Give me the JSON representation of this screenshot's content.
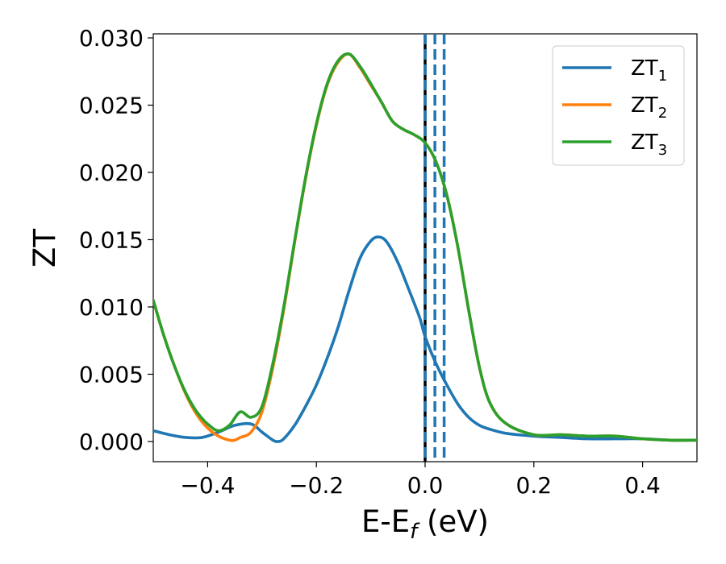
{
  "chart_data": {
    "type": "line",
    "xlabel": {
      "main": "E-E",
      "sub": "f",
      "units": " (eV)"
    },
    "ylabel": "ZT",
    "xlim": [
      -0.5,
      0.5
    ],
    "ylim": [
      -0.0015,
      0.0303
    ],
    "xticks": [
      -0.4,
      -0.2,
      0.0,
      0.2,
      0.4
    ],
    "xtick_labels": [
      "−0.4",
      "−0.2",
      "0.0",
      "0.2",
      "0.4"
    ],
    "yticks": [
      0.0,
      0.005,
      0.01,
      0.015,
      0.02,
      0.025,
      0.03
    ],
    "ytick_labels": [
      "0.000",
      "0.005",
      "0.010",
      "0.015",
      "0.020",
      "0.025",
      "0.030"
    ],
    "grid": false,
    "legend_position": "top-right",
    "vlines": [
      {
        "x": 0.0,
        "style": "solid",
        "color": "#000000"
      },
      {
        "x": 0.0,
        "style": "dashed",
        "color": "#1f77b4"
      },
      {
        "x": 0.018,
        "style": "dashed",
        "color": "#1f77b4"
      },
      {
        "x": 0.035,
        "style": "dashed",
        "color": "#1f77b4"
      }
    ],
    "series": [
      {
        "name": "ZT",
        "name_sub": "1",
        "color": "#1f77b4",
        "x": [
          -0.5,
          -0.47,
          -0.44,
          -0.41,
          -0.38,
          -0.35,
          -0.32,
          -0.3,
          -0.28,
          -0.27,
          -0.26,
          -0.24,
          -0.22,
          -0.2,
          -0.18,
          -0.16,
          -0.14,
          -0.12,
          -0.1,
          -0.085,
          -0.07,
          -0.05,
          -0.03,
          -0.01,
          0.0,
          0.02,
          0.04,
          0.06,
          0.08,
          0.1,
          0.12,
          0.15,
          0.2,
          0.25,
          0.3,
          0.35,
          0.4,
          0.45,
          0.5
        ],
        "y": [
          0.0008,
          0.0005,
          0.0003,
          0.0003,
          0.0007,
          0.0012,
          0.0013,
          0.0007,
          0.0001,
          0.0,
          0.0002,
          0.0012,
          0.0026,
          0.0042,
          0.0062,
          0.0085,
          0.0112,
          0.0136,
          0.0149,
          0.0152,
          0.0148,
          0.0133,
          0.0113,
          0.0092,
          0.0078,
          0.0058,
          0.0042,
          0.0028,
          0.0018,
          0.0012,
          0.0009,
          0.0006,
          0.0004,
          0.0003,
          0.0002,
          0.0002,
          0.0002,
          0.0001,
          0.0001
        ]
      },
      {
        "name": "ZT",
        "name_sub": "2",
        "color": "#ff7f0e",
        "x": [
          -0.5,
          -0.48,
          -0.46,
          -0.44,
          -0.42,
          -0.4,
          -0.38,
          -0.36,
          -0.35,
          -0.34,
          -0.32,
          -0.3,
          -0.28,
          -0.26,
          -0.24,
          -0.22,
          -0.2,
          -0.18,
          -0.16,
          -0.14,
          -0.12,
          -0.1,
          -0.08,
          -0.06,
          -0.04,
          -0.02,
          0.0,
          0.02,
          0.04,
          0.06,
          0.08,
          0.1,
          0.12,
          0.15,
          0.2,
          0.25,
          0.3,
          0.35,
          0.4,
          0.45,
          0.5
        ],
        "y": [
          0.0105,
          0.0078,
          0.0055,
          0.0035,
          0.002,
          0.001,
          0.0004,
          0.0001,
          0.0001,
          0.0003,
          0.0007,
          0.0022,
          0.0055,
          0.0098,
          0.0148,
          0.0195,
          0.0235,
          0.0265,
          0.0282,
          0.0288,
          0.0278,
          0.0265,
          0.0252,
          0.0238,
          0.0232,
          0.0228,
          0.0222,
          0.0208,
          0.0183,
          0.0145,
          0.0098,
          0.0055,
          0.0028,
          0.0013,
          0.0005,
          0.0005,
          0.0004,
          0.0004,
          0.0002,
          0.0001,
          0.0001
        ]
      },
      {
        "name": "ZT",
        "name_sub": "3",
        "color": "#2ca02c",
        "x": [
          -0.5,
          -0.48,
          -0.46,
          -0.44,
          -0.42,
          -0.4,
          -0.38,
          -0.36,
          -0.34,
          -0.32,
          -0.3,
          -0.28,
          -0.26,
          -0.24,
          -0.22,
          -0.2,
          -0.18,
          -0.16,
          -0.14,
          -0.12,
          -0.1,
          -0.08,
          -0.06,
          -0.04,
          -0.02,
          0.0,
          0.02,
          0.04,
          0.06,
          0.08,
          0.1,
          0.12,
          0.15,
          0.2,
          0.25,
          0.3,
          0.35,
          0.4,
          0.45,
          0.5
        ],
        "y": [
          0.0105,
          0.0078,
          0.0055,
          0.0036,
          0.0022,
          0.0013,
          0.0008,
          0.0012,
          0.0022,
          0.0018,
          0.0026,
          0.0058,
          0.01,
          0.0149,
          0.0196,
          0.0236,
          0.0266,
          0.0283,
          0.0288,
          0.0279,
          0.0266,
          0.0252,
          0.0238,
          0.0232,
          0.0228,
          0.0222,
          0.0208,
          0.0183,
          0.0145,
          0.0098,
          0.0055,
          0.0028,
          0.0013,
          0.0005,
          0.0005,
          0.0004,
          0.0004,
          0.0002,
          0.0001,
          0.0001
        ]
      }
    ]
  }
}
